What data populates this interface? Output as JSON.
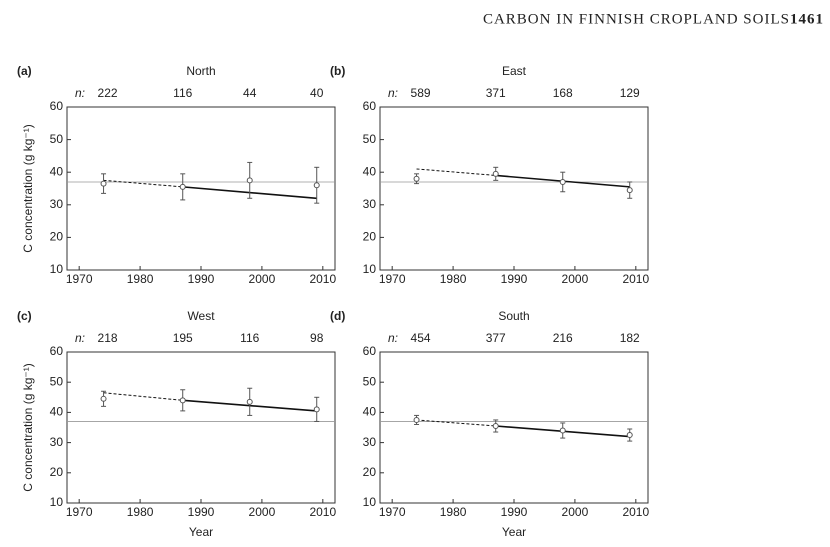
{
  "header": {
    "title": "CARBON IN FINNISH CROPLAND SOILS",
    "page": "1461"
  },
  "chart_data": [
    {
      "type": "scatter",
      "panel": "(a)",
      "title": "North",
      "n_label": "n:",
      "n": [
        222,
        116,
        44,
        40
      ],
      "ylabel": "C concentration (g kg⁻¹)",
      "x": [
        1974,
        1987,
        1998,
        2009
      ],
      "values": [
        36.5,
        35.5,
        37.5,
        36
      ],
      "errors": [
        3,
        4,
        5.5,
        5.5
      ],
      "extrapolated": {
        "x": [
          1974,
          1987
        ],
        "values": [
          37.5,
          35.5
        ]
      },
      "fit": {
        "x": [
          1987,
          2009
        ],
        "values": [
          35.5,
          32
        ]
      },
      "reference_line": 37,
      "xlim": [
        1968,
        2012
      ],
      "xticks": [
        1970,
        1980,
        1990,
        2000,
        2010
      ],
      "ylim": [
        10,
        60
      ],
      "yticks": [
        10,
        20,
        30,
        40,
        50,
        60
      ],
      "color": "#555555"
    },
    {
      "type": "scatter",
      "panel": "(b)",
      "title": "East",
      "n_label": "n:",
      "n": [
        589,
        371,
        168,
        129
      ],
      "x": [
        1974,
        1987,
        1998,
        2009
      ],
      "values": [
        38,
        39.5,
        37,
        34.5
      ],
      "errors": [
        1.5,
        2,
        3,
        2.5
      ],
      "extrapolated": {
        "x": [
          1974,
          1987
        ],
        "values": [
          41,
          39
        ]
      },
      "fit": {
        "x": [
          1987,
          2009
        ],
        "values": [
          39,
          35.5
        ]
      },
      "reference_line": 37,
      "xlim": [
        1968,
        2012
      ],
      "xticks": [
        1970,
        1980,
        1990,
        2000,
        2010
      ],
      "ylim": [
        10,
        60
      ],
      "yticks": [
        10,
        20,
        30,
        40,
        50,
        60
      ],
      "color": "#555555"
    },
    {
      "type": "scatter",
      "panel": "(c)",
      "title": "West",
      "n_label": "n:",
      "n": [
        218,
        195,
        116,
        98
      ],
      "ylabel": "C concentration (g kg⁻¹)",
      "xlabel": "Year",
      "x": [
        1974,
        1987,
        1998,
        2009
      ],
      "values": [
        44.5,
        44,
        43.5,
        41
      ],
      "errors": [
        2.5,
        3.5,
        4.5,
        4
      ],
      "extrapolated": {
        "x": [
          1974,
          1987
        ],
        "values": [
          46.5,
          44
        ]
      },
      "fit": {
        "x": [
          1987,
          2009
        ],
        "values": [
          44,
          40.5
        ]
      },
      "reference_line": 37,
      "xlim": [
        1968,
        2012
      ],
      "xticks": [
        1970,
        1980,
        1990,
        2000,
        2010
      ],
      "ylim": [
        10,
        60
      ],
      "yticks": [
        10,
        20,
        30,
        40,
        50,
        60
      ],
      "color": "#555555"
    },
    {
      "type": "scatter",
      "panel": "(d)",
      "title": "South",
      "n_label": "n:",
      "n": [
        454,
        377,
        216,
        182
      ],
      "xlabel": "Year",
      "x": [
        1974,
        1987,
        1998,
        2009
      ],
      "values": [
        37.5,
        35.5,
        34,
        32.5
      ],
      "errors": [
        1.5,
        2,
        2.5,
        2
      ],
      "extrapolated": {
        "x": [
          1974,
          1987
        ],
        "values": [
          37.5,
          35.5
        ]
      },
      "fit": {
        "x": [
          1987,
          2009
        ],
        "values": [
          35.5,
          32
        ]
      },
      "reference_line": 37,
      "xlim": [
        1968,
        2012
      ],
      "xticks": [
        1970,
        1980,
        1990,
        2000,
        2010
      ],
      "ylim": [
        10,
        60
      ],
      "yticks": [
        10,
        20,
        30,
        40,
        50,
        60
      ],
      "color": "#555555"
    }
  ]
}
